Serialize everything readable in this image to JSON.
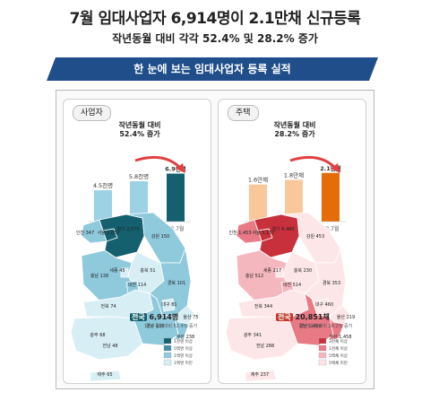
{
  "title": "7월 임대사업자 6,914명이 2.1만채 신규등록",
  "subtitle": "작년동월 대비 각각 52.4% 및 28.2% 증가",
  "banner": "한 눈에 보는 임대사업자 등록 실적",
  "colors": {
    "banner": "#1f4e8a",
    "blue_dark": "#14606e",
    "blue_light": "#9cd2e4",
    "orange_dark": "#e46c0a",
    "orange_light": "#f8c89a",
    "arrow": "#e04040"
  },
  "panels": [
    {
      "tag": "사업자",
      "note_l1": "작년동월 대비",
      "note_l2": "52.4% 증가",
      "chart_data": {
        "type": "bar",
        "categories": [
          "17.7월",
          "18.6월",
          "18.7월"
        ],
        "values": [
          4.5,
          5.8,
          6.9
        ],
        "value_labels": [
          "4.5천명",
          "5.8천명",
          "6.9천명"
        ],
        "ylim": [
          0,
          8
        ]
      },
      "highlight_region": "전국",
      "highlight_value": "6,914명",
      "highlight_sub": "17년 동월대비 52.4% 증가",
      "legend": [
        "1천명 이상",
        "5백명 이상",
        "1백명 이상",
        "1백명 미만"
      ],
      "map_values": {
        "서울": "2,057",
        "인천": "347",
        "경기": "2,575",
        "강원": "150",
        "충북": "51",
        "충남": "138",
        "세종": "45",
        "대전": "114",
        "경북": "101",
        "대구": "81",
        "전북": "74",
        "광주": "68",
        "경남": "133",
        "울산": "75",
        "부산": "238",
        "전남": "48",
        "제주": "65"
      }
    },
    {
      "tag": "주택",
      "note_l1": "작년동월 대비",
      "note_l2": "28.2% 증가",
      "chart_data": {
        "type": "bar",
        "categories": [
          "17.7월",
          "18.6월",
          "18.7월"
        ],
        "values": [
          1.6,
          1.8,
          2.1
        ],
        "value_labels": [
          "1.6만채",
          "1.8만채",
          "2.1만채"
        ],
        "ylim": [
          0,
          2.4
        ]
      },
      "highlight_region": "전국",
      "highlight_value": "20,851채",
      "highlight_sub": "17년 동월대비 28.2% 증가",
      "legend": [
        "3천채 이상",
        "1천채 이상",
        "5백채 이상",
        "5백채 미만"
      ],
      "map_values": {
        "서울": "5,187",
        "인천": "1,453",
        "경기": "6,480",
        "강원": "453",
        "충북": "230",
        "충남": "512",
        "세종": "217",
        "대전": "514",
        "경북": "353",
        "대구": "460",
        "전북": "344",
        "광주": "341",
        "경남": "1,468",
        "울산": "219",
        "부산": "1,458",
        "전남": "288",
        "제주": "237"
      }
    }
  ]
}
